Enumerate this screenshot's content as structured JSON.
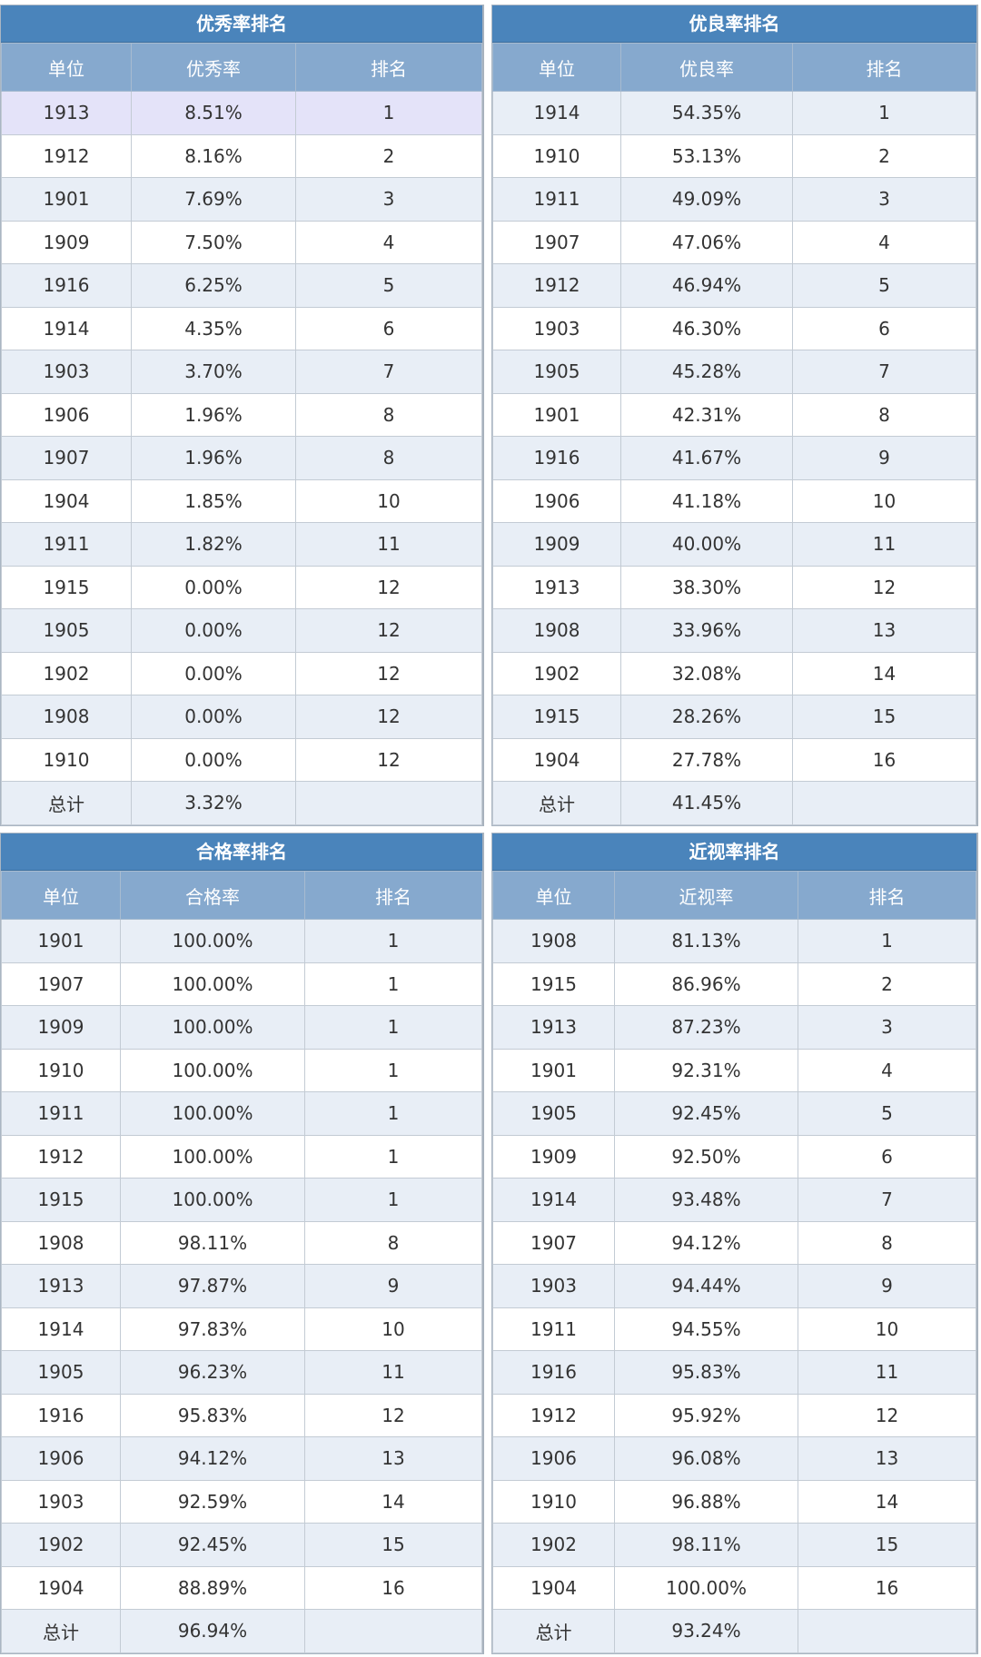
{
  "excellent": {
    "title": "优秀率排名",
    "headers": [
      "单位",
      "优秀率",
      "排名"
    ],
    "rows": [
      [
        "1913",
        "8.51%",
        "1"
      ],
      [
        "1912",
        "8.16%",
        "2"
      ],
      [
        "1901",
        "7.69%",
        "3"
      ],
      [
        "1909",
        "7.50%",
        "4"
      ],
      [
        "1916",
        "6.25%",
        "5"
      ],
      [
        "1914",
        "4.35%",
        "6"
      ],
      [
        "1903",
        "3.70%",
        "7"
      ],
      [
        "1906",
        "1.96%",
        "8"
      ],
      [
        "1907",
        "1.96%",
        "8"
      ],
      [
        "1904",
        "1.85%",
        "10"
      ],
      [
        "1911",
        "1.82%",
        "11"
      ],
      [
        "1915",
        "0.00%",
        "12"
      ],
      [
        "1905",
        "0.00%",
        "12"
      ],
      [
        "1902",
        "0.00%",
        "12"
      ],
      [
        "1908",
        "0.00%",
        "12"
      ],
      [
        "1910",
        "0.00%",
        "12"
      ]
    ],
    "total": [
      "总计",
      "3.32%",
      ""
    ]
  },
  "good": {
    "title": "优良率排名",
    "headers": [
      "单位",
      "优良率",
      "排名"
    ],
    "rows": [
      [
        "1914",
        "54.35%",
        "1"
      ],
      [
        "1910",
        "53.13%",
        "2"
      ],
      [
        "1911",
        "49.09%",
        "3"
      ],
      [
        "1907",
        "47.06%",
        "4"
      ],
      [
        "1912",
        "46.94%",
        "5"
      ],
      [
        "1903",
        "46.30%",
        "6"
      ],
      [
        "1905",
        "45.28%",
        "7"
      ],
      [
        "1901",
        "42.31%",
        "8"
      ],
      [
        "1916",
        "41.67%",
        "9"
      ],
      [
        "1906",
        "41.18%",
        "10"
      ],
      [
        "1909",
        "40.00%",
        "11"
      ],
      [
        "1913",
        "38.30%",
        "12"
      ],
      [
        "1908",
        "33.96%",
        "13"
      ],
      [
        "1902",
        "32.08%",
        "14"
      ],
      [
        "1915",
        "28.26%",
        "15"
      ],
      [
        "1904",
        "27.78%",
        "16"
      ]
    ],
    "total": [
      "总计",
      "41.45%",
      ""
    ]
  },
  "pass": {
    "title": "合格率排名",
    "headers": [
      "单位",
      "合格率",
      "排名"
    ],
    "rows": [
      [
        "1901",
        "100.00%",
        "1"
      ],
      [
        "1907",
        "100.00%",
        "1"
      ],
      [
        "1909",
        "100.00%",
        "1"
      ],
      [
        "1910",
        "100.00%",
        "1"
      ],
      [
        "1911",
        "100.00%",
        "1"
      ],
      [
        "1912",
        "100.00%",
        "1"
      ],
      [
        "1915",
        "100.00%",
        "1"
      ],
      [
        "1908",
        "98.11%",
        "8"
      ],
      [
        "1913",
        "97.87%",
        "9"
      ],
      [
        "1914",
        "97.83%",
        "10"
      ],
      [
        "1905",
        "96.23%",
        "11"
      ],
      [
        "1916",
        "95.83%",
        "12"
      ],
      [
        "1906",
        "94.12%",
        "13"
      ],
      [
        "1903",
        "92.59%",
        "14"
      ],
      [
        "1902",
        "92.45%",
        "15"
      ],
      [
        "1904",
        "88.89%",
        "16"
      ]
    ],
    "total": [
      "总计",
      "96.94%",
      ""
    ]
  },
  "myopia": {
    "title": "近视率排名",
    "headers": [
      "单位",
      "近视率",
      "排名"
    ],
    "rows": [
      [
        "1908",
        "81.13%",
        "1"
      ],
      [
        "1915",
        "86.96%",
        "2"
      ],
      [
        "1913",
        "87.23%",
        "3"
      ],
      [
        "1901",
        "92.31%",
        "4"
      ],
      [
        "1905",
        "92.45%",
        "5"
      ],
      [
        "1909",
        "92.50%",
        "6"
      ],
      [
        "1914",
        "93.48%",
        "7"
      ],
      [
        "1907",
        "94.12%",
        "8"
      ],
      [
        "1903",
        "94.44%",
        "9"
      ],
      [
        "1911",
        "94.55%",
        "10"
      ],
      [
        "1916",
        "95.83%",
        "11"
      ],
      [
        "1912",
        "95.92%",
        "12"
      ],
      [
        "1906",
        "96.08%",
        "13"
      ],
      [
        "1910",
        "96.88%",
        "14"
      ],
      [
        "1902",
        "98.11%",
        "15"
      ],
      [
        "1904",
        "100.00%",
        "16"
      ]
    ],
    "total": [
      "总计",
      "93.24%",
      ""
    ]
  },
  "colors": {
    "title_bar": "#4a84bb",
    "header_bg": "#86a9ce",
    "stripe": "#e8eef6",
    "highlight": "#e4e3f9"
  }
}
